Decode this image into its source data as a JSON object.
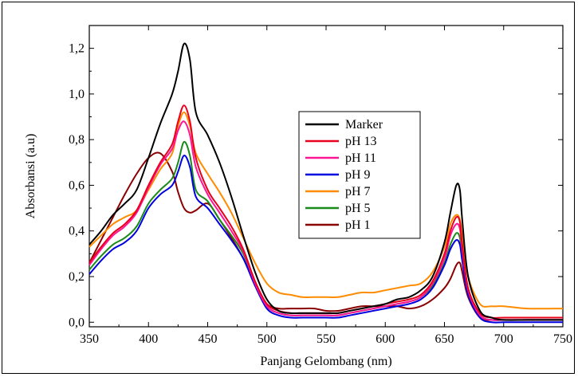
{
  "chart_data": {
    "type": "line",
    "title": "",
    "xlabel": "Panjang Gelombang (nm)",
    "ylabel": "Absorbansi (a.u)",
    "xlim": [
      350,
      750
    ],
    "ylim": [
      -0.02,
      1.3
    ],
    "x_ticks": [
      350,
      400,
      450,
      500,
      550,
      600,
      650,
      700,
      750
    ],
    "x_tick_labels": [
      "350",
      "400",
      "450",
      "500",
      "550",
      "600",
      "650",
      "700",
      "750"
    ],
    "y_ticks": [
      0.0,
      0.2,
      0.4,
      0.6,
      0.8,
      1.0,
      1.2
    ],
    "y_tick_labels": [
      "0,0",
      "0,2",
      "0,4",
      "0,6",
      "0,8",
      "1,0",
      "1,2"
    ],
    "grid": false,
    "legend_position": "center-right",
    "series": [
      {
        "name": "Marker",
        "color": "#000000",
        "x": [
          350,
          360,
          370,
          380,
          390,
          400,
          410,
          420,
          425,
          430,
          435,
          440,
          450,
          460,
          470,
          480,
          490,
          500,
          510,
          520,
          530,
          540,
          550,
          560,
          570,
          580,
          590,
          600,
          610,
          620,
          630,
          640,
          650,
          655,
          660,
          663,
          665,
          670,
          680,
          690,
          700,
          720,
          750
        ],
        "y": [
          0.34,
          0.4,
          0.47,
          0.52,
          0.58,
          0.72,
          0.87,
          1.0,
          1.1,
          1.22,
          1.15,
          0.92,
          0.82,
          0.7,
          0.55,
          0.38,
          0.22,
          0.1,
          0.05,
          0.04,
          0.04,
          0.04,
          0.04,
          0.04,
          0.05,
          0.06,
          0.07,
          0.08,
          0.1,
          0.11,
          0.14,
          0.2,
          0.35,
          0.48,
          0.6,
          0.58,
          0.45,
          0.2,
          0.05,
          0.02,
          0.01,
          0.01,
          0.01
        ]
      },
      {
        "name": "pH 13",
        "color": "#e8001c",
        "x": [
          350,
          360,
          370,
          380,
          390,
          400,
          410,
          420,
          425,
          430,
          435,
          440,
          450,
          460,
          470,
          480,
          490,
          500,
          510,
          520,
          530,
          540,
          550,
          560,
          570,
          580,
          590,
          600,
          610,
          620,
          630,
          640,
          650,
          655,
          660,
          663,
          665,
          670,
          680,
          690,
          700,
          720,
          750
        ],
        "y": [
          0.26,
          0.33,
          0.39,
          0.43,
          0.49,
          0.6,
          0.7,
          0.78,
          0.88,
          0.95,
          0.88,
          0.72,
          0.58,
          0.5,
          0.42,
          0.32,
          0.18,
          0.08,
          0.05,
          0.04,
          0.04,
          0.04,
          0.04,
          0.04,
          0.05,
          0.06,
          0.07,
          0.08,
          0.09,
          0.1,
          0.12,
          0.18,
          0.3,
          0.4,
          0.46,
          0.44,
          0.34,
          0.15,
          0.04,
          0.02,
          0.02,
          0.02,
          0.02
        ]
      },
      {
        "name": "pH 11",
        "color": "#ff1493",
        "x": [
          350,
          360,
          370,
          380,
          390,
          400,
          410,
          420,
          425,
          430,
          435,
          440,
          450,
          460,
          470,
          480,
          490,
          500,
          510,
          520,
          530,
          540,
          550,
          560,
          570,
          580,
          590,
          600,
          610,
          620,
          630,
          640,
          650,
          655,
          660,
          663,
          665,
          670,
          680,
          690,
          700,
          720,
          750
        ],
        "y": [
          0.25,
          0.32,
          0.38,
          0.42,
          0.48,
          0.59,
          0.69,
          0.76,
          0.84,
          0.88,
          0.82,
          0.68,
          0.56,
          0.48,
          0.4,
          0.31,
          0.17,
          0.07,
          0.04,
          0.03,
          0.03,
          0.03,
          0.03,
          0.03,
          0.04,
          0.05,
          0.06,
          0.07,
          0.08,
          0.09,
          0.11,
          0.17,
          0.28,
          0.38,
          0.43,
          0.41,
          0.32,
          0.14,
          0.03,
          0.01,
          0.01,
          0.01,
          0.01
        ]
      },
      {
        "name": "pH 9",
        "color": "#0000e0",
        "x": [
          350,
          360,
          370,
          380,
          390,
          400,
          410,
          420,
          425,
          430,
          435,
          440,
          450,
          460,
          470,
          480,
          490,
          500,
          510,
          520,
          530,
          540,
          550,
          560,
          570,
          580,
          590,
          600,
          610,
          620,
          630,
          640,
          650,
          655,
          660,
          663,
          665,
          670,
          680,
          690,
          700,
          720,
          750
        ],
        "y": [
          0.21,
          0.27,
          0.32,
          0.35,
          0.4,
          0.5,
          0.56,
          0.6,
          0.66,
          0.73,
          0.68,
          0.55,
          0.5,
          0.43,
          0.36,
          0.28,
          0.16,
          0.06,
          0.03,
          0.02,
          0.02,
          0.02,
          0.02,
          0.02,
          0.03,
          0.04,
          0.05,
          0.06,
          0.07,
          0.08,
          0.1,
          0.15,
          0.25,
          0.32,
          0.36,
          0.34,
          0.27,
          0.12,
          0.02,
          0.0,
          0.0,
          0.0,
          0.0
        ]
      },
      {
        "name": "pH 7",
        "color": "#ff8c00",
        "x": [
          350,
          360,
          370,
          380,
          390,
          400,
          410,
          420,
          425,
          430,
          435,
          440,
          450,
          460,
          470,
          480,
          490,
          500,
          510,
          520,
          530,
          540,
          550,
          560,
          570,
          580,
          590,
          600,
          610,
          620,
          630,
          640,
          650,
          655,
          660,
          663,
          665,
          670,
          680,
          690,
          700,
          720,
          750
        ],
        "y": [
          0.33,
          0.38,
          0.43,
          0.46,
          0.49,
          0.58,
          0.67,
          0.74,
          0.86,
          0.92,
          0.86,
          0.74,
          0.65,
          0.57,
          0.48,
          0.37,
          0.26,
          0.17,
          0.13,
          0.12,
          0.11,
          0.11,
          0.11,
          0.11,
          0.12,
          0.13,
          0.13,
          0.14,
          0.15,
          0.16,
          0.17,
          0.22,
          0.33,
          0.43,
          0.47,
          0.45,
          0.38,
          0.2,
          0.08,
          0.07,
          0.07,
          0.06,
          0.06
        ]
      },
      {
        "name": "pH 5",
        "color": "#1a8a1a",
        "x": [
          350,
          360,
          370,
          380,
          390,
          400,
          410,
          420,
          425,
          430,
          435,
          440,
          450,
          460,
          470,
          480,
          490,
          500,
          510,
          520,
          530,
          540,
          550,
          560,
          570,
          580,
          590,
          600,
          610,
          620,
          630,
          640,
          650,
          655,
          660,
          663,
          665,
          670,
          680,
          690,
          700,
          720,
          750
        ],
        "y": [
          0.23,
          0.29,
          0.34,
          0.37,
          0.42,
          0.52,
          0.58,
          0.63,
          0.7,
          0.79,
          0.73,
          0.58,
          0.53,
          0.45,
          0.38,
          0.3,
          0.17,
          0.07,
          0.04,
          0.03,
          0.03,
          0.03,
          0.03,
          0.03,
          0.04,
          0.05,
          0.06,
          0.07,
          0.08,
          0.09,
          0.11,
          0.16,
          0.26,
          0.34,
          0.39,
          0.37,
          0.29,
          0.13,
          0.03,
          0.01,
          0.01,
          0.01,
          0.01
        ]
      },
      {
        "name": "pH 1",
        "color": "#8b0000",
        "x": [
          350,
          360,
          370,
          380,
          390,
          400,
          410,
          420,
          425,
          430,
          435,
          440,
          450,
          460,
          470,
          480,
          490,
          500,
          510,
          520,
          530,
          540,
          550,
          560,
          570,
          580,
          590,
          600,
          610,
          620,
          630,
          640,
          650,
          655,
          660,
          663,
          665,
          670,
          680,
          690,
          700,
          720,
          750
        ],
        "y": [
          0.26,
          0.36,
          0.46,
          0.56,
          0.65,
          0.72,
          0.74,
          0.66,
          0.57,
          0.5,
          0.48,
          0.49,
          0.52,
          0.45,
          0.37,
          0.28,
          0.17,
          0.08,
          0.06,
          0.06,
          0.06,
          0.06,
          0.05,
          0.05,
          0.06,
          0.07,
          0.07,
          0.07,
          0.07,
          0.06,
          0.07,
          0.1,
          0.15,
          0.19,
          0.25,
          0.26,
          0.22,
          0.11,
          0.02,
          0.01,
          0.01,
          0.01,
          0.01
        ]
      }
    ]
  }
}
